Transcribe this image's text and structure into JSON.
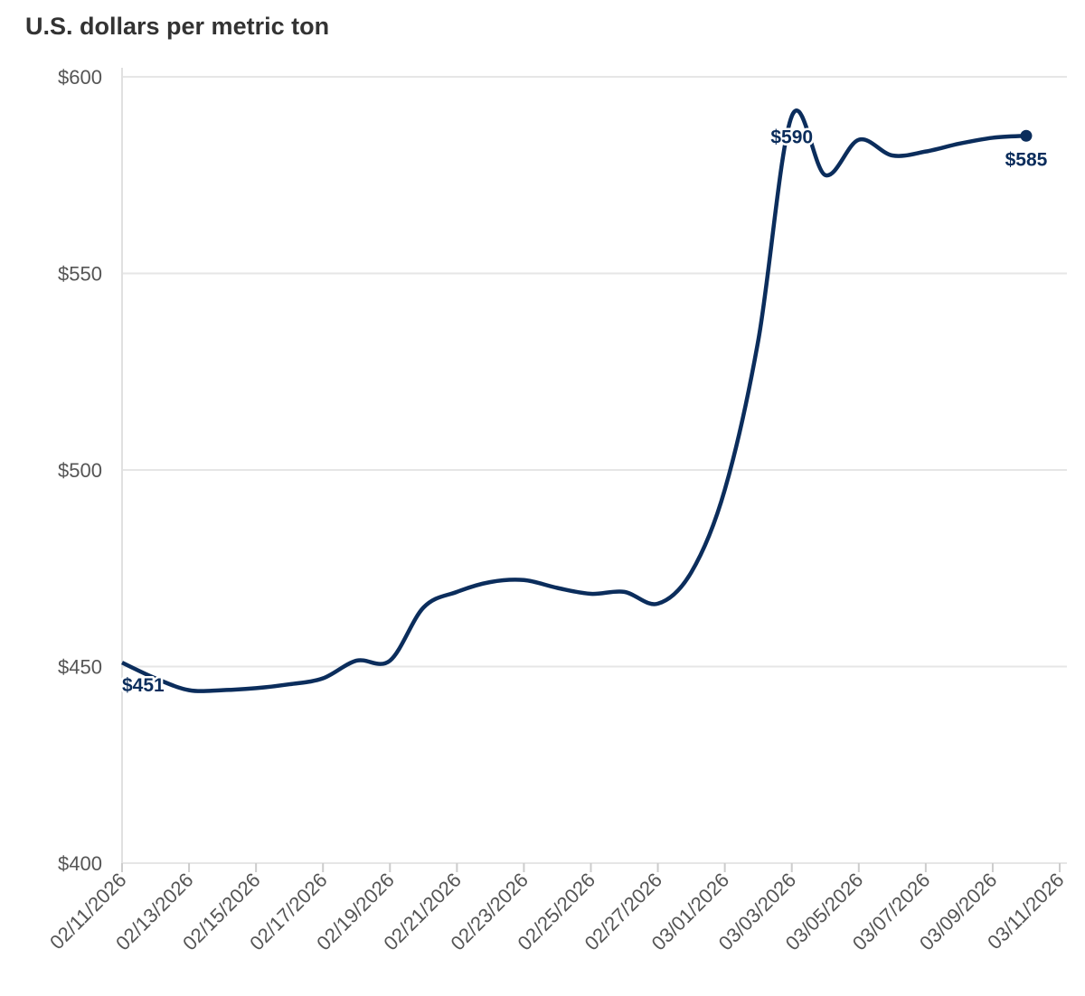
{
  "chart_data": {
    "type": "line",
    "title": "U.S. dollars per metric ton",
    "xlabel": "",
    "ylabel": "",
    "ylim": [
      400,
      600
    ],
    "yticks": [
      400,
      450,
      500,
      550,
      600
    ],
    "ytick_labels": [
      "$400",
      "$450",
      "$500",
      "$550",
      "$600"
    ],
    "xtick_labels": [
      "02/11/2026",
      "02/13/2026",
      "02/15/2026",
      "02/17/2026",
      "02/19/2026",
      "02/21/2026",
      "02/23/2026",
      "02/25/2026",
      "02/27/2026",
      "03/01/2026",
      "03/03/2026",
      "03/05/2026",
      "03/07/2026",
      "03/09/2026",
      "03/11/2026"
    ],
    "grid": true,
    "color": "#0b2d5c",
    "series": [
      {
        "name": "U.S. dollars per metric ton",
        "x": [
          "02/11/2026",
          "02/12/2026",
          "02/13/2026",
          "02/14/2026",
          "02/15/2026",
          "02/16/2026",
          "02/17/2026",
          "02/18/2026",
          "02/19/2026",
          "02/20/2026",
          "02/21/2026",
          "02/22/2026",
          "02/23/2026",
          "02/24/2026",
          "02/25/2026",
          "02/26/2026",
          "02/27/2026",
          "02/28/2026",
          "03/01/2026",
          "03/02/2026",
          "03/03/2026",
          "03/04/2026",
          "03/05/2026",
          "03/06/2026",
          "03/07/2026",
          "03/08/2026",
          "03/09/2026",
          "03/10/2026"
        ],
        "values": [
          451,
          447,
          444,
          444,
          444.5,
          445.5,
          447,
          451.5,
          451.5,
          465,
          469,
          471.5,
          472,
          470,
          468.5,
          469,
          466,
          474,
          495,
          533,
          590,
          575,
          584,
          580,
          581,
          583,
          584.5,
          585
        ]
      }
    ],
    "annotations": [
      {
        "index": 0,
        "text": "$451"
      },
      {
        "index": 20,
        "text": "$590"
      },
      {
        "index": 27,
        "text": "$585"
      }
    ]
  }
}
